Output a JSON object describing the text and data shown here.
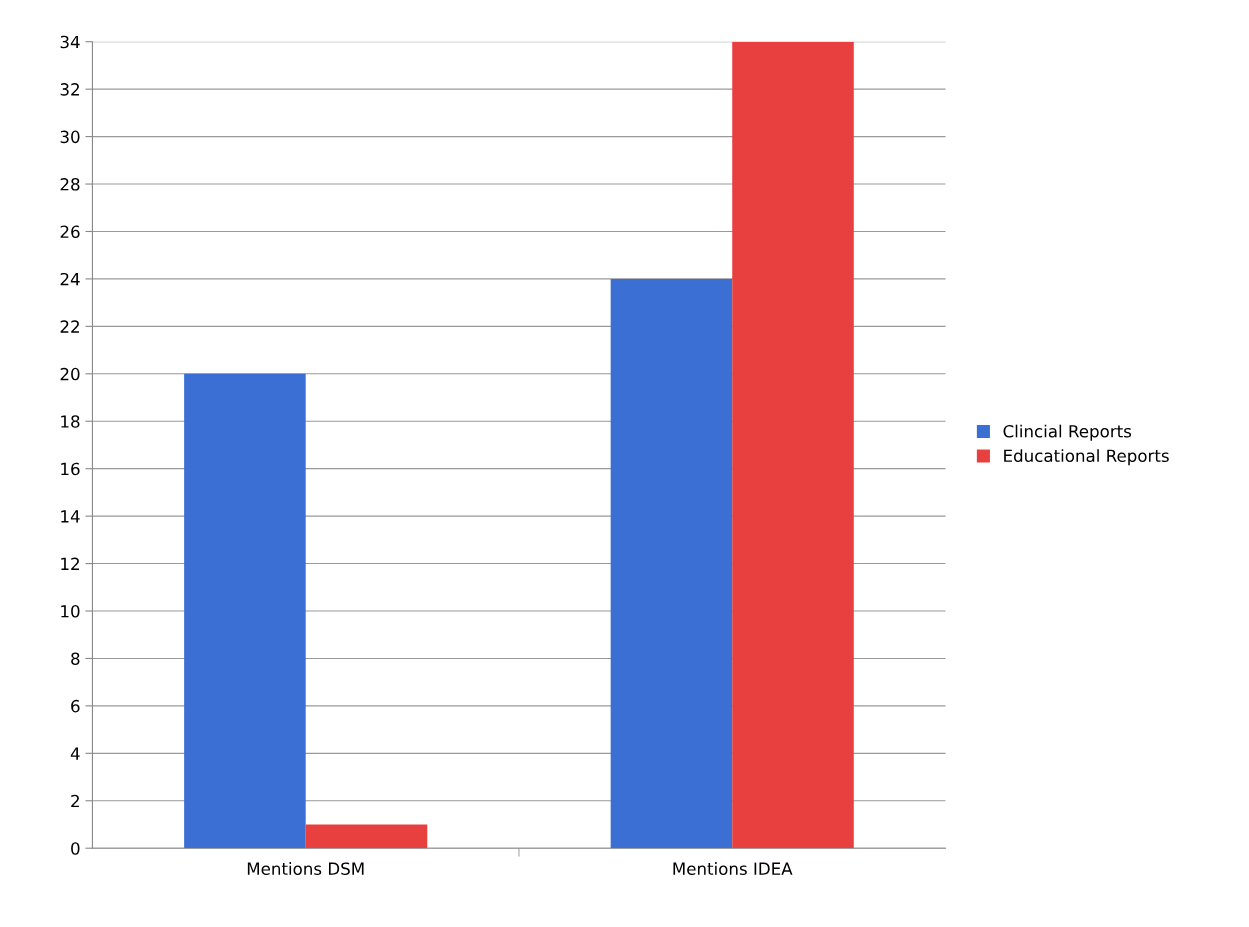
{
  "chart_data": {
    "type": "bar",
    "categories": [
      "Mentions DSM",
      "Mentions IDEA"
    ],
    "series": [
      {
        "name": "Clincial Reports",
        "color": "#3b6fd4",
        "values": [
          20,
          24
        ]
      },
      {
        "name": "Educational Reports",
        "color": "#e8403f",
        "values": [
          1,
          34
        ]
      }
    ],
    "ylim": [
      0,
      34
    ],
    "yticks": [
      0,
      2,
      4,
      6,
      8,
      10,
      12,
      14,
      16,
      18,
      20,
      22,
      24,
      26,
      28,
      30,
      32,
      34
    ],
    "grid": "y",
    "legend": "right"
  }
}
